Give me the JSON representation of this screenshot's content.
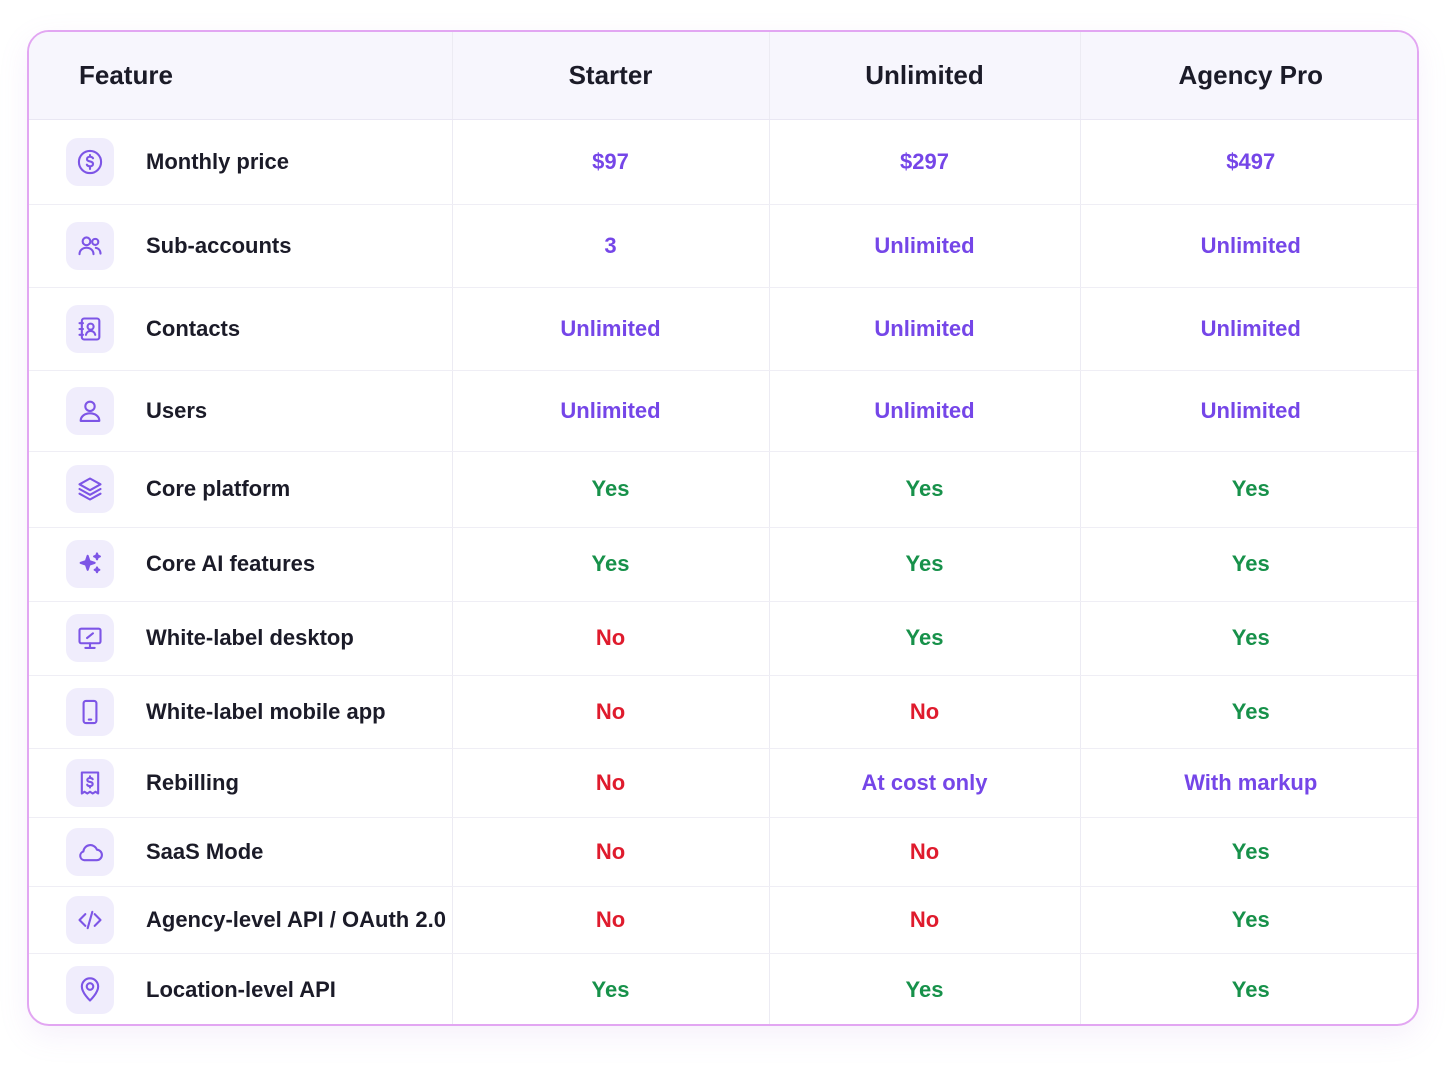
{
  "colors": {
    "border": "#e2a6f2",
    "accent": "#7546e8",
    "yes": "#17914a",
    "no": "#df1b2d",
    "header_bg": "#f7f6fd"
  },
  "headers": [
    "Feature",
    "Starter",
    "Unlimited",
    "Agency Pro"
  ],
  "rows": [
    {
      "icon": "dollar-circle-icon",
      "label": "Monthly price",
      "values": [
        {
          "text": "$97",
          "tone": "purple"
        },
        {
          "text": "$297",
          "tone": "purple"
        },
        {
          "text": "$497",
          "tone": "purple"
        }
      ]
    },
    {
      "icon": "users-icon",
      "label": "Sub-accounts",
      "values": [
        {
          "text": "3",
          "tone": "purple"
        },
        {
          "text": "Unlimited",
          "tone": "purple"
        },
        {
          "text": "Unlimited",
          "tone": "purple"
        }
      ]
    },
    {
      "icon": "contacts-book-icon",
      "label": "Contacts",
      "values": [
        {
          "text": "Unlimited",
          "tone": "purple"
        },
        {
          "text": "Unlimited",
          "tone": "purple"
        },
        {
          "text": "Unlimited",
          "tone": "purple"
        }
      ]
    },
    {
      "icon": "user-icon",
      "label": "Users",
      "values": [
        {
          "text": "Unlimited",
          "tone": "purple"
        },
        {
          "text": "Unlimited",
          "tone": "purple"
        },
        {
          "text": "Unlimited",
          "tone": "purple"
        }
      ]
    },
    {
      "icon": "layers-icon",
      "label": "Core platform",
      "values": [
        {
          "text": "Yes",
          "tone": "green"
        },
        {
          "text": "Yes",
          "tone": "green"
        },
        {
          "text": "Yes",
          "tone": "green"
        }
      ]
    },
    {
      "icon": "sparkles-icon",
      "label": "Core AI features",
      "values": [
        {
          "text": "Yes",
          "tone": "green"
        },
        {
          "text": "Yes",
          "tone": "green"
        },
        {
          "text": "Yes",
          "tone": "green"
        }
      ]
    },
    {
      "icon": "desktop-monitor-icon",
      "label": "White-label desktop",
      "values": [
        {
          "text": "No",
          "tone": "red"
        },
        {
          "text": "Yes",
          "tone": "green"
        },
        {
          "text": "Yes",
          "tone": "green"
        }
      ]
    },
    {
      "icon": "mobile-phone-icon",
      "label": "White-label mobile app",
      "values": [
        {
          "text": "No",
          "tone": "red"
        },
        {
          "text": "No",
          "tone": "red"
        },
        {
          "text": "Yes",
          "tone": "green"
        }
      ]
    },
    {
      "icon": "receipt-dollar-icon",
      "label": "Rebilling",
      "values": [
        {
          "text": "No",
          "tone": "red"
        },
        {
          "text": "At cost only",
          "tone": "purple"
        },
        {
          "text": "With markup",
          "tone": "purple"
        }
      ]
    },
    {
      "icon": "cloud-icon",
      "label": "SaaS Mode",
      "values": [
        {
          "text": "No",
          "tone": "red"
        },
        {
          "text": "No",
          "tone": "red"
        },
        {
          "text": "Yes",
          "tone": "green"
        }
      ]
    },
    {
      "icon": "code-brackets-icon",
      "label": "Agency-level API / OAuth 2.0",
      "values": [
        {
          "text": "No",
          "tone": "red"
        },
        {
          "text": "No",
          "tone": "red"
        },
        {
          "text": "Yes",
          "tone": "green"
        }
      ]
    },
    {
      "icon": "location-pin-icon",
      "label": "Location-level API",
      "values": [
        {
          "text": "Yes",
          "tone": "green"
        },
        {
          "text": "Yes",
          "tone": "green"
        },
        {
          "text": "Yes",
          "tone": "green"
        }
      ]
    }
  ]
}
